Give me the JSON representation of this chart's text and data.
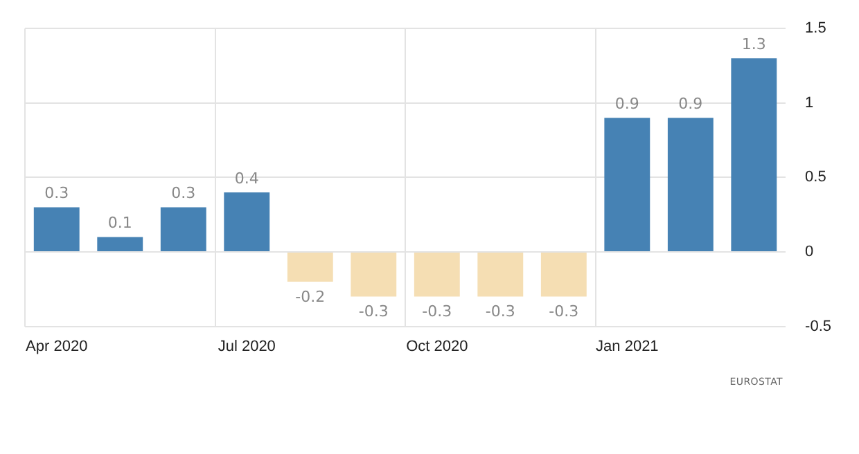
{
  "chart_data": {
    "type": "bar",
    "categories": [
      "Apr 2020",
      null,
      null,
      "Jul 2020",
      null,
      null,
      "Oct 2020",
      null,
      null,
      "Jan 2021",
      null,
      null
    ],
    "values": [
      0.3,
      0.1,
      0.3,
      0.4,
      -0.2,
      -0.3,
      -0.3,
      -0.3,
      -0.3,
      0.9,
      0.9,
      1.3
    ],
    "colors": [
      "#4682b4",
      "#4682b4",
      "#4682b4",
      "#4682b4",
      "#f5deb3",
      "#f5deb3",
      "#f5deb3",
      "#f5deb3",
      "#f5deb3",
      "#4682b4",
      "#4682b4",
      "#4682b4"
    ],
    "ylim": [
      -0.5,
      1.5
    ],
    "yticks": [
      -0.5,
      0,
      0.5,
      1,
      1.5
    ],
    "grid": true,
    "data_labels": true,
    "legend": false,
    "annotations": [
      "EUROSTAT"
    ]
  }
}
